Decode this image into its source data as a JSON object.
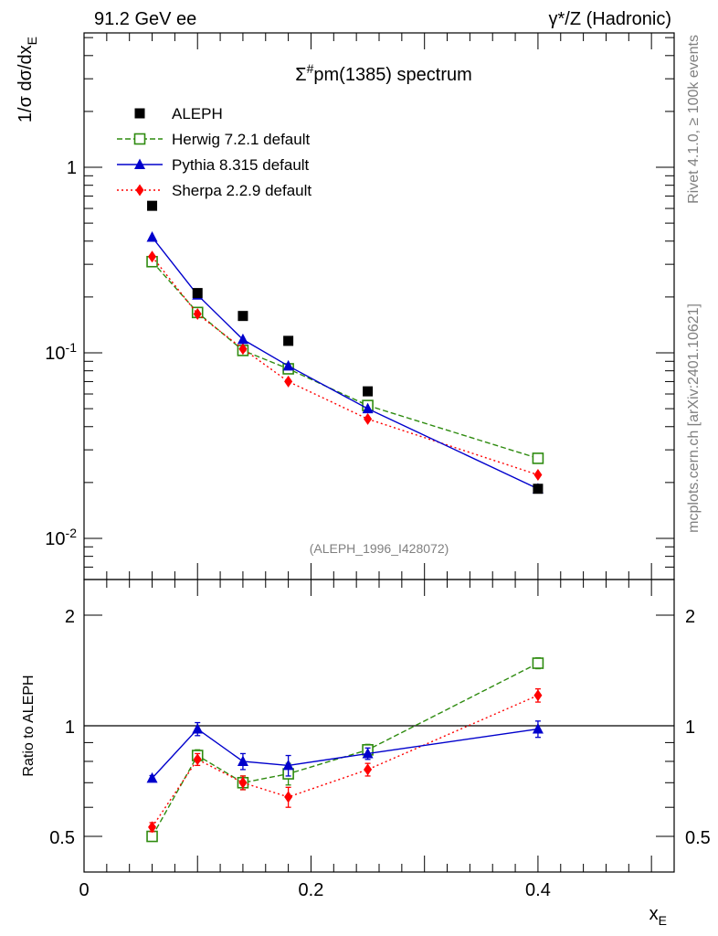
{
  "header": {
    "left": "91.2 GeV ee",
    "right": "γ*/Z (Hadronic)"
  },
  "side_labels": {
    "rivet": "Rivet 4.1.0, ≥ 100k events",
    "site": "mcplots.cern.ch [arXiv:2401.10621]"
  },
  "chart_data": [
    {
      "type": "scatter",
      "title": "Σ#pm(1385) spectrum",
      "analysis_tag": "(ALEPH_1996_I428072)",
      "ylabel": "1/σ  dσ/dx_E",
      "yscale": "log",
      "ylim": [
        0.006,
        5.3
      ],
      "xlim": [
        0,
        0.52
      ],
      "ytick_labels": [
        "10^-2",
        "10^-1",
        "1"
      ],
      "ytick_values": [
        0.01,
        0.1,
        1
      ],
      "legend_location": "top-left",
      "x": [
        0.06,
        0.1,
        0.14,
        0.18,
        0.25,
        0.4
      ],
      "series": [
        {
          "name": "ALEPH",
          "color": "#000000",
          "marker": "square",
          "line": "none",
          "values": [
            0.62,
            0.21,
            0.158,
            0.116,
            0.062,
            0.0185
          ]
        },
        {
          "name": "Herwig 7.2.1 default",
          "color": "#2e8b0f",
          "marker": "open-square",
          "line": "dashed",
          "values": [
            0.31,
            0.165,
            0.103,
            0.082,
            0.052,
            0.027
          ]
        },
        {
          "name": "Pythia 8.315 default",
          "color": "#0000cc",
          "marker": "triangle",
          "line": "solid",
          "values": [
            0.42,
            0.205,
            0.118,
            0.085,
            0.05,
            0.0185
          ]
        },
        {
          "name": "Sherpa 2.2.9 default",
          "color": "#ff0000",
          "marker": "diamond",
          "line": "dotted",
          "values": [
            0.33,
            0.162,
            0.105,
            0.07,
            0.044,
            0.022
          ]
        }
      ]
    },
    {
      "type": "scatter",
      "ylabel": "Ratio to ALEPH",
      "xlabel": "x_E",
      "yscale": "log",
      "ylim": [
        0.4,
        2.5
      ],
      "xlim": [
        0,
        0.52
      ],
      "ytick_labels": [
        "0.5",
        "1",
        "2"
      ],
      "ytick_values": [
        0.5,
        1,
        2
      ],
      "xtick_labels": [
        "0",
        "0.2",
        "0.4"
      ],
      "xtick_values": [
        0,
        0.2,
        0.4
      ],
      "reference_line": 1,
      "x": [
        0.06,
        0.1,
        0.14,
        0.18,
        0.25,
        0.4
      ],
      "series": [
        {
          "name": "Herwig 7.2.1 default",
          "color": "#2e8b0f",
          "marker": "open-square",
          "line": "dashed",
          "values": [
            0.5,
            0.83,
            0.7,
            0.74,
            0.86,
            1.48
          ],
          "errors": [
            0.015,
            0.03,
            0.03,
            0.05,
            0.03,
            0.05
          ]
        },
        {
          "name": "Pythia 8.315 default",
          "color": "#0000cc",
          "marker": "triangle",
          "line": "solid",
          "values": [
            0.72,
            0.98,
            0.8,
            0.78,
            0.84,
            0.98
          ],
          "errors": [
            0.012,
            0.04,
            0.04,
            0.05,
            0.03,
            0.05
          ]
        },
        {
          "name": "Sherpa 2.2.9 default",
          "color": "#ff0000",
          "marker": "diamond",
          "line": "dotted",
          "values": [
            0.53,
            0.81,
            0.7,
            0.64,
            0.76,
            1.21
          ],
          "errors": [
            0.015,
            0.03,
            0.03,
            0.04,
            0.03,
            0.05
          ]
        }
      ]
    }
  ]
}
